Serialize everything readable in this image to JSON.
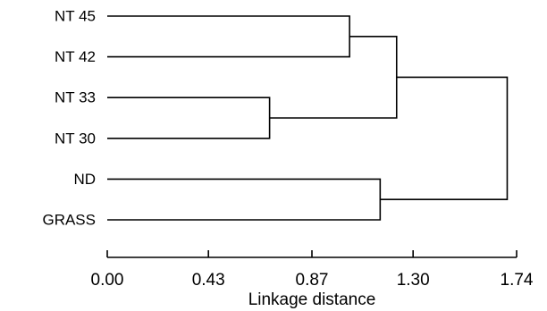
{
  "chart_data": {
    "type": "dendrogram",
    "orientation": "horizontal",
    "title": "",
    "xlabel": "Linkage distance",
    "ylabel": "",
    "xlim": [
      0,
      1.74
    ],
    "x_ticks": [
      0.0,
      0.43,
      0.87,
      1.3,
      1.74
    ],
    "x_tick_labels": [
      "0.00",
      "0.43",
      "0.87",
      "1.30",
      "1.74"
    ],
    "grid": false,
    "leaves": [
      "NT 45",
      "NT 42",
      "NT 33",
      "NT 30",
      "ND",
      "GRASS"
    ],
    "merges": [
      {
        "id": "c1",
        "left": "NT 33",
        "right": "NT 30",
        "distance": 0.69
      },
      {
        "id": "c2",
        "left": "NT 45",
        "right": "NT 42",
        "distance": 1.03
      },
      {
        "id": "c3",
        "left": "ND",
        "right": "GRASS",
        "distance": 1.16
      },
      {
        "id": "c4",
        "left": "c2",
        "right": "c1",
        "distance": 1.23
      },
      {
        "id": "c5",
        "left": "c4",
        "right": "c3",
        "distance": 1.7
      }
    ]
  }
}
